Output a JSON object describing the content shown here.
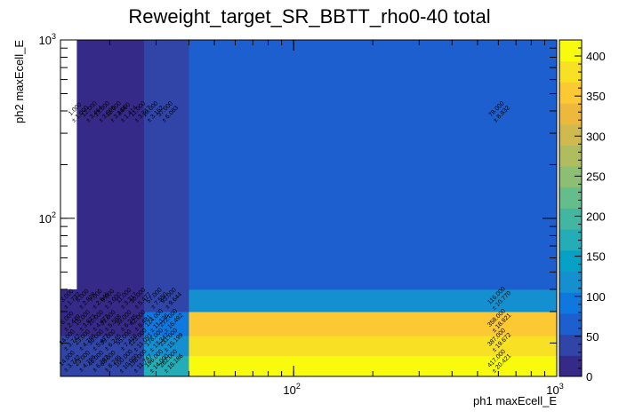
{
  "chart_data": {
    "type": "heatmap",
    "title": "Reweight_target_SR_BBTT_rho0-40 total",
    "xlabel": "ph1 maxEcell_E",
    "ylabel": "ph2 maxEcell_E",
    "x_scale": "log",
    "y_scale": "log",
    "xlim": [
      13,
      1000
    ],
    "ylim": [
      13,
      1000
    ],
    "x_tick_labels": [
      {
        "value": 100,
        "base": "10",
        "exp": "2"
      },
      {
        "value": 1000,
        "base": "10",
        "exp": "3"
      }
    ],
    "y_tick_labels": [
      {
        "value": 100,
        "base": "10",
        "exp": "2"
      },
      {
        "value": 1000,
        "base": "10",
        "exp": "3"
      }
    ],
    "x_edges": [
      13,
      27,
      40,
      1000
    ],
    "y_edges": [
      13,
      17,
      22,
      30,
      40,
      1000
    ],
    "z_max": 420,
    "colorbar_ticks": [
      0,
      50,
      100,
      150,
      200,
      250,
      300,
      350,
      400
    ],
    "palette": [
      "#352a87",
      "#3145a8",
      "#1e5fcf",
      "#0f78df",
      "#1490d1",
      "#08a1c6",
      "#24adb6",
      "#42b6a0",
      "#64bd8a",
      "#8cbf74",
      "#b0bd5f",
      "#d0ba4f",
      "#edb93d",
      "#fcc834",
      "#f8e024",
      "#f9fb0e"
    ],
    "bins": [
      {
        "xi": 0,
        "yi": 0,
        "z": 40
      },
      {
        "xi": 1,
        "yi": 0,
        "z": 165
      },
      {
        "xi": 2,
        "yi": 0,
        "z": 417
      },
      {
        "xi": 0,
        "yi": 1,
        "z": 35
      },
      {
        "xi": 1,
        "yi": 1,
        "z": 125
      },
      {
        "xi": 2,
        "yi": 1,
        "z": 387
      },
      {
        "xi": 0,
        "yi": 2,
        "z": 25
      },
      {
        "xi": 1,
        "yi": 2,
        "z": 85
      },
      {
        "xi": 2,
        "yi": 2,
        "z": 358
      },
      {
        "xi": 0,
        "yi": 3,
        "z": 8
      },
      {
        "xi": 1,
        "yi": 3,
        "z": 30
      },
      {
        "xi": 2,
        "yi": 3,
        "z": 116
      },
      {
        "xi": 0,
        "yi": 4,
        "z": 5
      },
      {
        "xi": 1,
        "yi": 4,
        "z": 37
      },
      {
        "xi": 2,
        "yi": 4,
        "z": 78
      }
    ],
    "left_empty_region": {
      "x_to": 15,
      "y_from": 40
    },
    "bin_labels": [
      {
        "x": 15,
        "y": 400,
        "value": "1.000",
        "error": "± 1.000"
      },
      {
        "x": 17,
        "y": 400,
        "value": "12.000",
        "error": "± 3.464"
      },
      {
        "x": 19,
        "y": 400,
        "value": "13.000",
        "error": "± 3.606"
      },
      {
        "x": 21,
        "y": 400,
        "value": "12.000",
        "error": "± 3.464"
      },
      {
        "x": 23,
        "y": 400,
        "value": "2.000",
        "error": "± 1.414"
      },
      {
        "x": 26,
        "y": 400,
        "value": "11.000",
        "error": "± 3.317"
      },
      {
        "x": 29,
        "y": 400,
        "value": "10.000",
        "error": "± 3.162"
      },
      {
        "x": 33,
        "y": 400,
        "value": "37.000",
        "error": "± 6.083"
      },
      {
        "x": 600,
        "y": 400,
        "value": "78.000",
        "error": "± 8.832"
      },
      {
        "x": 14,
        "y": 36,
        "value": "3.000",
        "error": "± 1.732"
      },
      {
        "x": 16,
        "y": 36,
        "value": "8.000",
        "error": "± 2.828"
      },
      {
        "x": 18,
        "y": 36,
        "value": "7.000",
        "error": "± 2.646"
      },
      {
        "x": 20,
        "y": 36,
        "value": "9.000",
        "error": "± 3.000"
      },
      {
        "x": 23,
        "y": 36,
        "value": "11.000",
        "error": "± 3.317"
      },
      {
        "x": 26,
        "y": 36,
        "value": "30.000",
        "error": "± 5.477"
      },
      {
        "x": 30,
        "y": 36,
        "value": "57.000",
        "error": "± 7.550"
      },
      {
        "x": 34,
        "y": 36,
        "value": "93.000",
        "error": "± 9.644"
      },
      {
        "x": 600,
        "y": 36,
        "value": "116.000",
        "error": "± 10.770"
      },
      {
        "x": 14,
        "y": 27,
        "value": "6.000",
        "error": "± 2.449"
      },
      {
        "x": 16,
        "y": 27,
        "value": "15.000",
        "error": "± 3.873"
      },
      {
        "x": 18,
        "y": 27,
        "value": "20.000",
        "error": "± 4.472"
      },
      {
        "x": 20,
        "y": 27,
        "value": "31.000",
        "error": "± 5.568"
      },
      {
        "x": 23,
        "y": 27,
        "value": "39.000",
        "error": "± 6.245"
      },
      {
        "x": 26,
        "y": 27,
        "value": "42.000",
        "error": "± 6.481"
      },
      {
        "x": 30,
        "y": 27,
        "value": "124.000",
        "error": "± 11.136"
      },
      {
        "x": 34,
        "y": 27,
        "value": "272.000",
        "error": "± 16.492"
      },
      {
        "x": 600,
        "y": 27,
        "value": "358.000",
        "error": "± 18.921"
      },
      {
        "x": 14,
        "y": 21,
        "value": "14.000",
        "error": "± 3.742"
      },
      {
        "x": 16,
        "y": 21,
        "value": "23.000",
        "error": "± 4.796"
      },
      {
        "x": 18,
        "y": 21,
        "value": "30.000",
        "error": "± 5.477"
      },
      {
        "x": 20,
        "y": 21,
        "value": "39.000",
        "error": "± 6.245"
      },
      {
        "x": 23,
        "y": 21,
        "value": "55.000",
        "error": "± 7.416"
      },
      {
        "x": 26,
        "y": 21,
        "value": "123.000",
        "error": "± 11.091"
      },
      {
        "x": 30,
        "y": 21,
        "value": "178.000",
        "error": "± 13.342"
      },
      {
        "x": 34,
        "y": 21,
        "value": "231.000",
        "error": "± 15.199"
      },
      {
        "x": 600,
        "y": 21,
        "value": "387.000",
        "error": "± 19.672"
      },
      {
        "x": 14,
        "y": 16,
        "value": "14.000",
        "error": "± 3.742"
      },
      {
        "x": 16,
        "y": 16,
        "value": "23.000",
        "error": "± 4.796"
      },
      {
        "x": 18,
        "y": 16,
        "value": "46.000",
        "error": "± 6.782"
      },
      {
        "x": 20,
        "y": 16,
        "value": "68.000",
        "error": "± 8.246"
      },
      {
        "x": 23,
        "y": 16,
        "value": "100.000",
        "error": "± 10.000"
      },
      {
        "x": 26,
        "y": 16,
        "value": "138.000",
        "error": "± 11.747"
      },
      {
        "x": 30,
        "y": 16,
        "value": "196.000",
        "error": "± 14.000"
      },
      {
        "x": 34,
        "y": 16,
        "value": "262.000",
        "error": "± 16.186"
      },
      {
        "x": 600,
        "y": 16,
        "value": "417.000",
        "error": "± 20.421"
      }
    ]
  }
}
